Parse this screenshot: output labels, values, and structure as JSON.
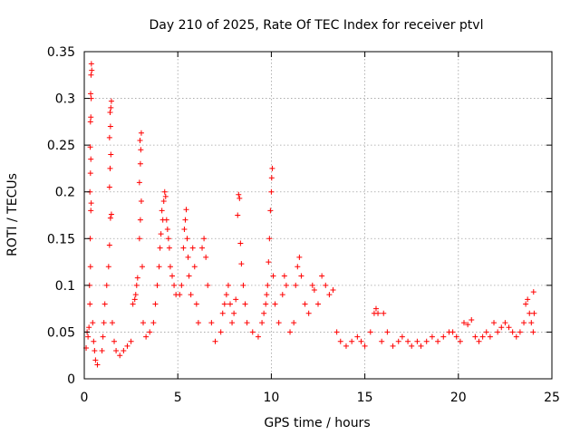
{
  "chart_data": {
    "type": "scatter",
    "title": "Day 210 of 2025, Rate Of TEC Index for receiver ptvl",
    "xlabel": "GPS time / hours",
    "ylabel": "ROTI / TECUs",
    "xlim": [
      0,
      25
    ],
    "ylim": [
      0,
      0.35
    ],
    "xticks": [
      0,
      5,
      10,
      15,
      20,
      25
    ],
    "yticks": [
      0,
      0.05,
      0.1,
      0.15,
      0.2,
      0.25,
      0.3,
      0.35
    ],
    "xtick_labels": [
      "0",
      "5",
      "10",
      "15",
      "20",
      "25"
    ],
    "ytick_labels": [
      "0",
      "0.05",
      "0.1",
      "0.15",
      "0.2",
      "0.25",
      "0.3",
      "0.35"
    ],
    "grid": true,
    "marker": "+",
    "color": "#ff0000",
    "series": [
      {
        "name": "ROTI",
        "points": [
          [
            0.1,
            0.033
          ],
          [
            0.15,
            0.05
          ],
          [
            0.2,
            0.045
          ],
          [
            0.25,
            0.055
          ],
          [
            0.3,
            0.08
          ],
          [
            0.28,
            0.1
          ],
          [
            0.33,
            0.12
          ],
          [
            0.32,
            0.15
          ],
          [
            0.35,
            0.18
          ],
          [
            0.37,
            0.188
          ],
          [
            0.3,
            0.2
          ],
          [
            0.33,
            0.22
          ],
          [
            0.35,
            0.235
          ],
          [
            0.32,
            0.248
          ],
          [
            0.33,
            0.275
          ],
          [
            0.35,
            0.28
          ],
          [
            0.37,
            0.3
          ],
          [
            0.34,
            0.305
          ],
          [
            0.36,
            0.325
          ],
          [
            0.38,
            0.337
          ],
          [
            0.4,
            0.33
          ],
          [
            0.45,
            0.06
          ],
          [
            0.5,
            0.04
          ],
          [
            0.55,
            0.03
          ],
          [
            0.6,
            0.02
          ],
          [
            0.7,
            0.015
          ],
          [
            0.95,
            0.03
          ],
          [
            1.0,
            0.045
          ],
          [
            1.05,
            0.06
          ],
          [
            1.1,
            0.08
          ],
          [
            1.2,
            0.1
          ],
          [
            1.3,
            0.12
          ],
          [
            1.35,
            0.143
          ],
          [
            1.4,
            0.172
          ],
          [
            1.45,
            0.176
          ],
          [
            1.35,
            0.205
          ],
          [
            1.38,
            0.225
          ],
          [
            1.42,
            0.24
          ],
          [
            1.35,
            0.258
          ],
          [
            1.4,
            0.27
          ],
          [
            1.38,
            0.285
          ],
          [
            1.42,
            0.29
          ],
          [
            1.45,
            0.297
          ],
          [
            1.5,
            0.06
          ],
          [
            1.6,
            0.04
          ],
          [
            1.7,
            0.03
          ],
          [
            1.9,
            0.025
          ],
          [
            2.1,
            0.03
          ],
          [
            2.3,
            0.035
          ],
          [
            2.5,
            0.04
          ],
          [
            2.6,
            0.08
          ],
          [
            2.7,
            0.085
          ],
          [
            2.75,
            0.09
          ],
          [
            2.8,
            0.1
          ],
          [
            2.85,
            0.108
          ],
          [
            2.95,
            0.15
          ],
          [
            3.0,
            0.17
          ],
          [
            3.05,
            0.19
          ],
          [
            2.95,
            0.21
          ],
          [
            3.0,
            0.23
          ],
          [
            3.02,
            0.245
          ],
          [
            2.98,
            0.255
          ],
          [
            3.05,
            0.263
          ],
          [
            3.1,
            0.12
          ],
          [
            3.15,
            0.06
          ],
          [
            3.3,
            0.045
          ],
          [
            3.5,
            0.05
          ],
          [
            3.7,
            0.06
          ],
          [
            3.8,
            0.08
          ],
          [
            3.9,
            0.1
          ],
          [
            4.0,
            0.12
          ],
          [
            4.05,
            0.14
          ],
          [
            4.1,
            0.155
          ],
          [
            4.2,
            0.17
          ],
          [
            4.15,
            0.18
          ],
          [
            4.25,
            0.19
          ],
          [
            4.3,
            0.2
          ],
          [
            4.35,
            0.195
          ],
          [
            4.4,
            0.17
          ],
          [
            4.45,
            0.16
          ],
          [
            4.5,
            0.15
          ],
          [
            4.55,
            0.14
          ],
          [
            4.6,
            0.12
          ],
          [
            4.7,
            0.11
          ],
          [
            4.8,
            0.1
          ],
          [
            4.9,
            0.09
          ],
          [
            5.1,
            0.09
          ],
          [
            5.2,
            0.1
          ],
          [
            5.3,
            0.14
          ],
          [
            5.35,
            0.16
          ],
          [
            5.4,
            0.17
          ],
          [
            5.45,
            0.181
          ],
          [
            5.5,
            0.15
          ],
          [
            5.55,
            0.13
          ],
          [
            5.6,
            0.11
          ],
          [
            5.7,
            0.09
          ],
          [
            5.8,
            0.14
          ],
          [
            5.9,
            0.12
          ],
          [
            6.0,
            0.08
          ],
          [
            6.1,
            0.06
          ],
          [
            6.3,
            0.14
          ],
          [
            6.4,
            0.15
          ],
          [
            6.5,
            0.13
          ],
          [
            6.6,
            0.1
          ],
          [
            6.8,
            0.06
          ],
          [
            7.0,
            0.04
          ],
          [
            7.3,
            0.05
          ],
          [
            7.4,
            0.07
          ],
          [
            7.5,
            0.08
          ],
          [
            7.6,
            0.09
          ],
          [
            7.7,
            0.1
          ],
          [
            7.8,
            0.08
          ],
          [
            7.9,
            0.06
          ],
          [
            8.0,
            0.07
          ],
          [
            8.1,
            0.085
          ],
          [
            8.2,
            0.175
          ],
          [
            8.25,
            0.197
          ],
          [
            8.3,
            0.193
          ],
          [
            8.35,
            0.145
          ],
          [
            8.4,
            0.123
          ],
          [
            8.5,
            0.1
          ],
          [
            8.6,
            0.08
          ],
          [
            8.7,
            0.06
          ],
          [
            9.0,
            0.05
          ],
          [
            9.3,
            0.045
          ],
          [
            9.5,
            0.06
          ],
          [
            9.6,
            0.07
          ],
          [
            9.7,
            0.08
          ],
          [
            9.75,
            0.09
          ],
          [
            9.8,
            0.1
          ],
          [
            9.85,
            0.125
          ],
          [
            9.9,
            0.15
          ],
          [
            9.95,
            0.18
          ],
          [
            10.0,
            0.2
          ],
          [
            10.05,
            0.225
          ],
          [
            10.02,
            0.215
          ],
          [
            10.1,
            0.11
          ],
          [
            10.2,
            0.08
          ],
          [
            10.4,
            0.06
          ],
          [
            10.6,
            0.09
          ],
          [
            10.7,
            0.11
          ],
          [
            10.8,
            0.1
          ],
          [
            11.0,
            0.05
          ],
          [
            11.2,
            0.06
          ],
          [
            11.3,
            0.1
          ],
          [
            11.4,
            0.12
          ],
          [
            11.5,
            0.13
          ],
          [
            11.6,
            0.11
          ],
          [
            11.8,
            0.08
          ],
          [
            12.0,
            0.07
          ],
          [
            12.2,
            0.1
          ],
          [
            12.3,
            0.095
          ],
          [
            12.5,
            0.08
          ],
          [
            12.7,
            0.11
          ],
          [
            12.9,
            0.1
          ],
          [
            13.1,
            0.09
          ],
          [
            13.3,
            0.095
          ],
          [
            13.5,
            0.05
          ],
          [
            13.7,
            0.04
          ],
          [
            14.0,
            0.035
          ],
          [
            14.3,
            0.04
          ],
          [
            14.6,
            0.045
          ],
          [
            14.8,
            0.04
          ],
          [
            15.0,
            0.035
          ],
          [
            15.3,
            0.05
          ],
          [
            15.5,
            0.07
          ],
          [
            15.6,
            0.075
          ],
          [
            15.7,
            0.07
          ],
          [
            15.9,
            0.04
          ],
          [
            16.0,
            0.07
          ],
          [
            16.2,
            0.05
          ],
          [
            16.5,
            0.035
          ],
          [
            16.8,
            0.04
          ],
          [
            17.0,
            0.045
          ],
          [
            17.3,
            0.04
          ],
          [
            17.5,
            0.035
          ],
          [
            17.8,
            0.04
          ],
          [
            18.0,
            0.035
          ],
          [
            18.3,
            0.04
          ],
          [
            18.6,
            0.045
          ],
          [
            18.9,
            0.04
          ],
          [
            19.2,
            0.045
          ],
          [
            19.5,
            0.05
          ],
          [
            19.7,
            0.05
          ],
          [
            19.9,
            0.045
          ],
          [
            20.1,
            0.04
          ],
          [
            20.3,
            0.06
          ],
          [
            20.5,
            0.058
          ],
          [
            20.7,
            0.063
          ],
          [
            20.9,
            0.045
          ],
          [
            21.1,
            0.04
          ],
          [
            21.3,
            0.045
          ],
          [
            21.5,
            0.05
          ],
          [
            21.7,
            0.045
          ],
          [
            21.9,
            0.06
          ],
          [
            22.1,
            0.05
          ],
          [
            22.3,
            0.055
          ],
          [
            22.5,
            0.06
          ],
          [
            22.7,
            0.055
          ],
          [
            22.9,
            0.05
          ],
          [
            23.1,
            0.045
          ],
          [
            23.3,
            0.05
          ],
          [
            23.5,
            0.06
          ],
          [
            23.6,
            0.08
          ],
          [
            23.7,
            0.085
          ],
          [
            23.8,
            0.07
          ],
          [
            23.9,
            0.06
          ],
          [
            24.0,
            0.05
          ],
          [
            24.02,
            0.093
          ],
          [
            24.05,
            0.07
          ]
        ]
      }
    ]
  }
}
